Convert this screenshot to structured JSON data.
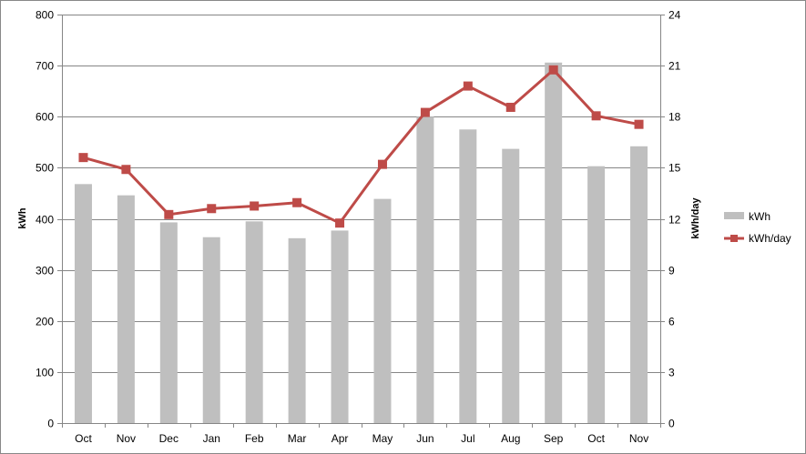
{
  "chart_data": {
    "type": "bar",
    "categories": [
      "Oct",
      "Nov",
      "Dec",
      "Jan",
      "Feb",
      "Mar",
      "Apr",
      "May",
      "Jun",
      "Jul",
      "Aug",
      "Sep",
      "Oct",
      "Nov"
    ],
    "series": [
      {
        "name": "kWh",
        "type": "bar",
        "axis": "left",
        "color": "#bfbfbf",
        "values": [
          468,
          446,
          393,
          364,
          395,
          362,
          377,
          439,
          600,
          575,
          537,
          706,
          503,
          542
        ]
      },
      {
        "name": "kWh/day",
        "type": "line",
        "axis": "right",
        "color": "#be4b48",
        "marker": "square",
        "values": [
          15.6,
          14.9,
          12.25,
          12.6,
          12.75,
          12.95,
          11.75,
          15.2,
          18.25,
          19.8,
          18.55,
          20.75,
          18.05,
          17.55
        ]
      }
    ],
    "ylabel": "kWh",
    "y2label": "kWh/day",
    "ylim": [
      0,
      800
    ],
    "y2lim": [
      0,
      24
    ],
    "yticks": [
      "0",
      "100",
      "200",
      "300",
      "400",
      "500",
      "600",
      "700",
      "800"
    ],
    "y2ticks": [
      "0",
      "3",
      "6",
      "9",
      "12",
      "15",
      "18",
      "21",
      "24"
    ],
    "grid": true,
    "legend": "right"
  }
}
